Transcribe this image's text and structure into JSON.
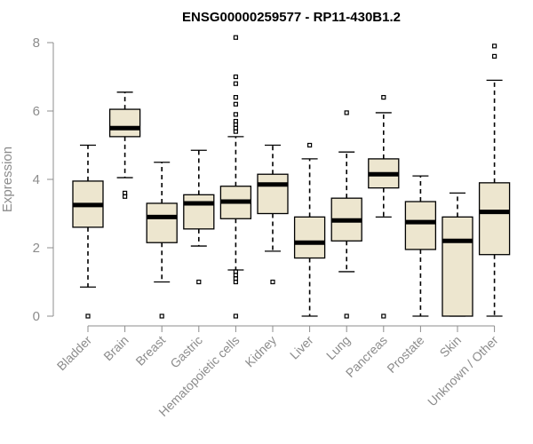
{
  "chart_data": {
    "type": "boxplot",
    "title": "ENSG00000259577 - RP11-430B1.2",
    "xlabel": "",
    "ylabel": "Expression",
    "ylim": [
      0,
      8
    ],
    "yticks": [
      0,
      2,
      4,
      6,
      8
    ],
    "box_color": "#ede6cf",
    "categories": [
      "Bladder",
      "Brain",
      "Breast",
      "Gastric",
      "Hematopoietic cells",
      "Kidney",
      "Liver",
      "Lung",
      "Pancreas",
      "Prostate",
      "Skin",
      "Unknown / Other"
    ],
    "boxes": [
      {
        "name": "Bladder",
        "whisker_low": 0.85,
        "q1": 2.6,
        "median": 3.25,
        "q3": 3.95,
        "whisker_high": 5.0,
        "outliers": [
          0.0
        ]
      },
      {
        "name": "Brain",
        "whisker_low": 4.05,
        "q1": 5.25,
        "median": 5.5,
        "q3": 6.05,
        "whisker_high": 6.55,
        "outliers": [
          3.5,
          3.6
        ]
      },
      {
        "name": "Breast",
        "whisker_low": 1.0,
        "q1": 2.15,
        "median": 2.9,
        "q3": 3.3,
        "whisker_high": 4.5,
        "outliers": [
          0.0
        ]
      },
      {
        "name": "Gastric",
        "whisker_low": 2.05,
        "q1": 2.55,
        "median": 3.3,
        "q3": 3.55,
        "whisker_high": 4.85,
        "outliers": [
          1.0
        ]
      },
      {
        "name": "Hematopoietic cells",
        "whisker_low": 1.35,
        "q1": 2.85,
        "median": 3.35,
        "q3": 3.8,
        "whisker_high": 5.25,
        "outliers": [
          0.0,
          1.0,
          1.1,
          1.2,
          1.3,
          5.4,
          5.5,
          5.6,
          5.7,
          5.9,
          6.2,
          6.4,
          6.8,
          7.0,
          8.15
        ]
      },
      {
        "name": "Kidney",
        "whisker_low": 1.9,
        "q1": 3.0,
        "median": 3.85,
        "q3": 4.15,
        "whisker_high": 5.0,
        "outliers": [
          1.0
        ]
      },
      {
        "name": "Liver",
        "whisker_low": 0.0,
        "q1": 1.7,
        "median": 2.15,
        "q3": 2.9,
        "whisker_high": 4.6,
        "outliers": [
          5.0
        ]
      },
      {
        "name": "Lung",
        "whisker_low": 1.3,
        "q1": 2.2,
        "median": 2.8,
        "q3": 3.45,
        "whisker_high": 4.8,
        "outliers": [
          0.0,
          5.95
        ]
      },
      {
        "name": "Pancreas",
        "whisker_low": 2.9,
        "q1": 3.75,
        "median": 4.15,
        "q3": 4.6,
        "whisker_high": 5.95,
        "outliers": [
          0.0,
          6.4
        ]
      },
      {
        "name": "Prostate",
        "whisker_low": 0.0,
        "q1": 1.95,
        "median": 2.75,
        "q3": 3.35,
        "whisker_high": 4.1,
        "outliers": []
      },
      {
        "name": "Skin",
        "whisker_low": 0.0,
        "q1": 0.0,
        "median": 2.2,
        "q3": 2.9,
        "whisker_high": 3.6,
        "outliers": []
      },
      {
        "name": "Unknown / Other",
        "whisker_low": 0.0,
        "q1": 1.8,
        "median": 3.05,
        "q3": 3.9,
        "whisker_high": 6.9,
        "outliers": [
          7.6,
          7.9
        ]
      }
    ]
  }
}
